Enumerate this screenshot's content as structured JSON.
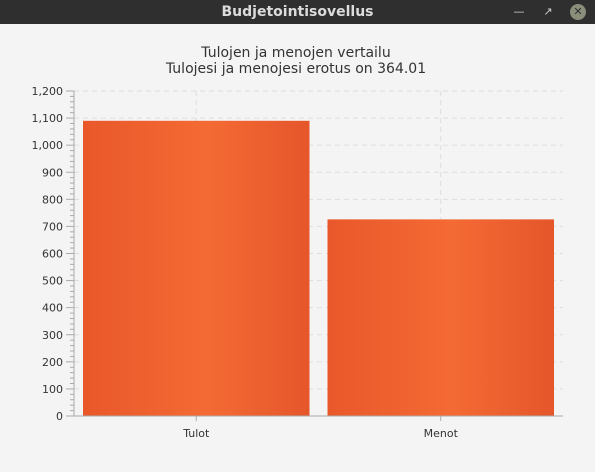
{
  "window": {
    "title": "Budjetointisovellus"
  },
  "titlebar_buttons": {
    "minimize_icon": "minimize-icon",
    "maximize_icon": "maximize-icon",
    "close_icon": "close-icon"
  },
  "colors": {
    "bar": "#ef5e2c",
    "bar_light": "#f46a34",
    "bar_dark": "#e5562a",
    "grid": "#dddddd",
    "axis": "#aaaaaa",
    "text": "#333333"
  },
  "chart_data": {
    "type": "bar",
    "title": "Tulojen ja menojen vertailu",
    "subtitle": "Tulojesi ja menojesi erotus on 364.01",
    "categories": [
      "Tulot",
      "Menot"
    ],
    "values": [
      1090,
      726
    ],
    "ylim": [
      0,
      1200
    ],
    "yticks": [
      "0",
      "100",
      "200",
      "300",
      "400",
      "500",
      "600",
      "700",
      "800",
      "900",
      "1,000",
      "1,100",
      "1,200"
    ],
    "grid": true,
    "legend": "none"
  }
}
